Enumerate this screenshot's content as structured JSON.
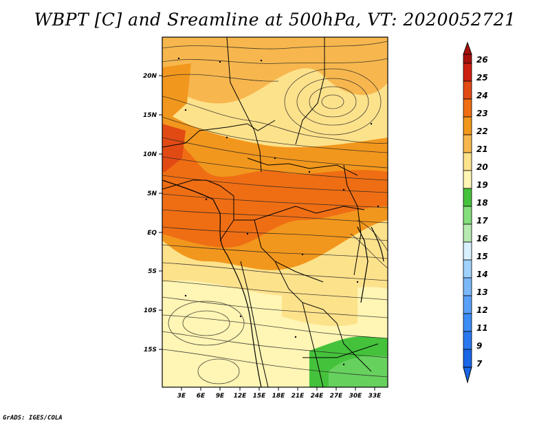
{
  "title": "WBPT [C] and Sreamline at 500hPa, VT: 2020052721",
  "credit": "GrADS: IGES/COLA",
  "map": {
    "lon_labels": [
      "3E",
      "6E",
      "9E",
      "12E",
      "15E",
      "18E",
      "21E",
      "24E",
      "27E",
      "30E",
      "33E"
    ],
    "lat_labels": [
      "20N",
      "15N",
      "10N",
      "5N",
      "EQ",
      "5S",
      "10S",
      "15S"
    ],
    "lon_range": [
      0,
      35
    ],
    "lat_range": [
      -20,
      25
    ]
  },
  "colorbar": {
    "levels": [
      "7",
      "9",
      "11",
      "12",
      "13",
      "14",
      "15",
      "16",
      "17",
      "18",
      "19",
      "20",
      "21",
      "22",
      "23",
      "24",
      "25",
      "26"
    ],
    "colors": [
      "#1a66e6",
      "#2a78f0",
      "#3c8cf6",
      "#5aa0f8",
      "#7ab8fa",
      "#a0d2fc",
      "#d8f0ff",
      "#b6eab0",
      "#84de7c",
      "#45c23b",
      "#fff5b4",
      "#fde28c",
      "#f7b74e",
      "#f2971d",
      "#ef6e14",
      "#e24a14",
      "#cc1f12",
      "#a8100c"
    ]
  }
}
